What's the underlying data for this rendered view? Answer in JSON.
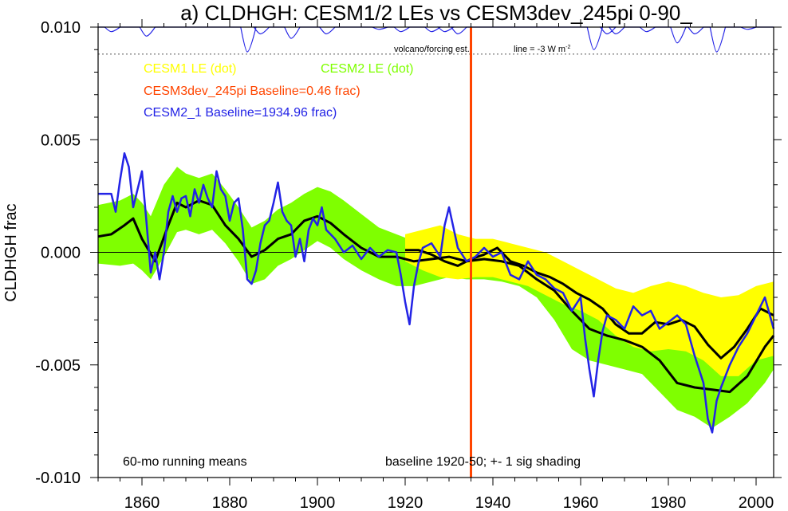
{
  "chart_data": {
    "type": "line",
    "title": "a) CLDHGH: CESM1/2 LEs vs CESM3dev_245pi 0-90_",
    "xlabel": "",
    "ylabel": "CLDHGH frac",
    "xlim": [
      1850,
      2004
    ],
    "ylim": [
      -0.01,
      0.01
    ],
    "x_ticks": [
      1860,
      1880,
      1900,
      1920,
      1940,
      1960,
      1980,
      2000
    ],
    "y_ticks": [
      -0.01,
      -0.005,
      0.0,
      0.005,
      0.01
    ],
    "y_tick_labels": [
      "-0.010",
      "-0.005",
      "0.000",
      "0.005",
      "0.010"
    ],
    "zero_line": true,
    "vertical_marker_year": 1935,
    "legend": [
      {
        "label": "CESM1 LE (dot)",
        "color": "#ffff00"
      },
      {
        "label": "CESM2 LE (dot)",
        "color": "#7fff00"
      },
      {
        "label": "CESM3dev_245pi Baseline=0.46 frac)",
        "color": "#ff4500"
      },
      {
        "label": "CESM2_1 Baseline=1934.96 frac)",
        "color": "#2323e6"
      }
    ],
    "annotations": {
      "volcano_label": "volcano/forcing est.",
      "line_label": "line = -3 W m",
      "line_label_sup": "-2",
      "bottom_left": "60-mo running means",
      "bottom_right": "baseline 1920-50; +- 1 sig shading"
    },
    "series": [
      {
        "name": "CESM2 LE spread",
        "kind": "band",
        "color": "#7fff00",
        "x": [
          1850,
          1855,
          1858,
          1860,
          1862,
          1865,
          1868,
          1870,
          1873,
          1876,
          1879,
          1882,
          1885,
          1888,
          1891,
          1894,
          1897,
          1900,
          1903,
          1906,
          1910,
          1914,
          1918,
          1922,
          1926,
          1930,
          1934,
          1938,
          1942,
          1946,
          1950,
          1954,
          1958,
          1962,
          1966,
          1970,
          1974,
          1978,
          1982,
          1986,
          1990,
          1994,
          1998,
          2002,
          2004
        ],
        "upper": [
          0.0021,
          0.0023,
          0.0026,
          0.0022,
          0.0016,
          0.003,
          0.0038,
          0.0035,
          0.0033,
          0.0035,
          0.0028,
          0.002,
          0.0011,
          0.0014,
          0.0019,
          0.0022,
          0.0026,
          0.0029,
          0.0027,
          0.0023,
          0.0017,
          0.0011,
          0.0008,
          0.0005,
          0.0006,
          0.0007,
          0.0004,
          0.0003,
          0.0002,
          0.0001,
          -0.0003,
          -0.0008,
          -0.0013,
          -0.0018,
          -0.0022,
          -0.0023,
          -0.0021,
          -0.0024,
          -0.0036,
          -0.004,
          -0.0045,
          -0.0042,
          -0.0036,
          -0.0029,
          -0.0027
        ],
        "lower": [
          -0.0005,
          -0.0006,
          -0.0005,
          -0.0008,
          -0.0012,
          -0.0002,
          0.0009,
          0.001,
          0.0008,
          0.001,
          0.0004,
          -0.0004,
          -0.0014,
          -0.0012,
          -0.0006,
          -0.0003,
          0.0001,
          0.0005,
          0.0002,
          -0.0003,
          -0.0008,
          -0.0012,
          -0.0015,
          -0.0015,
          -0.0013,
          -0.0011,
          -0.0012,
          -0.0012,
          -0.0013,
          -0.0015,
          -0.002,
          -0.003,
          -0.0043,
          -0.0048,
          -0.005,
          -0.0052,
          -0.0054,
          -0.0062,
          -0.007,
          -0.0073,
          -0.0078,
          -0.0073,
          -0.0067,
          -0.0058,
          -0.0052
        ]
      },
      {
        "name": "CESM1 LE spread",
        "kind": "band",
        "color": "#ffff00",
        "x": [
          1920,
          1924,
          1928,
          1932,
          1936,
          1940,
          1944,
          1948,
          1952,
          1956,
          1960,
          1964,
          1968,
          1972,
          1976,
          1980,
          1984,
          1988,
          1992,
          1996,
          2000,
          2004
        ],
        "upper": [
          0.0008,
          0.001,
          0.0012,
          0.0008,
          0.0006,
          0.0006,
          0.0004,
          0.0002,
          0.0,
          -0.0004,
          -0.0008,
          -0.0012,
          -0.0016,
          -0.0018,
          -0.0015,
          -0.0013,
          -0.0015,
          -0.0018,
          -0.002,
          -0.0019,
          -0.0015,
          -0.0013
        ],
        "lower": [
          -0.0004,
          -0.0008,
          -0.0011,
          -0.0012,
          -0.0011,
          -0.0011,
          -0.0013,
          -0.0015,
          -0.0019,
          -0.0023,
          -0.0026,
          -0.003,
          -0.0037,
          -0.0042,
          -0.0044,
          -0.0043,
          -0.0044,
          -0.0048,
          -0.0055,
          -0.0055,
          -0.0048,
          -0.0046
        ]
      },
      {
        "name": "CESM2 LE ensemble mean",
        "kind": "line",
        "color": "#000000",
        "x": [
          1850,
          1853,
          1856,
          1858,
          1860,
          1863,
          1866,
          1868,
          1870,
          1873,
          1876,
          1879,
          1882,
          1885,
          1888,
          1891,
          1894,
          1897,
          1900,
          1903,
          1906,
          1910,
          1914,
          1918,
          1922,
          1926,
          1930,
          1934,
          1938,
          1942,
          1946,
          1950,
          1954,
          1958,
          1962,
          1966,
          1970,
          1974,
          1978,
          1982,
          1986,
          1990,
          1994,
          1998,
          2002,
          2004
        ],
        "values": [
          0.0007,
          0.0008,
          0.0012,
          0.0015,
          0.0006,
          -0.0004,
          0.0012,
          0.0022,
          0.002,
          0.0023,
          0.0021,
          0.0012,
          0.0006,
          -0.0002,
          0.0001,
          0.0006,
          0.0008,
          0.0014,
          0.0016,
          0.0013,
          0.0008,
          0.0002,
          -0.0002,
          -0.0002,
          -0.0004,
          -0.0003,
          -0.0002,
          -0.0004,
          -0.0003,
          -0.0004,
          -0.0006,
          -0.0012,
          -0.0017,
          -0.0026,
          -0.0034,
          -0.0037,
          -0.0039,
          -0.0042,
          -0.0048,
          -0.0058,
          -0.006,
          -0.0061,
          -0.0062,
          -0.0055,
          -0.0042,
          -0.0037
        ]
      },
      {
        "name": "CESM1 LE ensemble mean",
        "kind": "line",
        "color": "#000000",
        "x": [
          1920,
          1923,
          1926,
          1929,
          1932,
          1935,
          1938,
          1941,
          1944,
          1947,
          1950,
          1953,
          1956,
          1959,
          1962,
          1965,
          1968,
          1971,
          1974,
          1977,
          1980,
          1983,
          1986,
          1989,
          1992,
          1995,
          1998,
          2001,
          2004
        ],
        "values": [
          0.0001,
          0.0001,
          -0.0001,
          -0.0004,
          -0.0006,
          -0.0003,
          -0.0001,
          0.0002,
          -0.0004,
          -0.0006,
          -0.0009,
          -0.0011,
          -0.0014,
          -0.0018,
          -0.0021,
          -0.0025,
          -0.0032,
          -0.0036,
          -0.0036,
          -0.0031,
          -0.0032,
          -0.003,
          -0.0033,
          -0.0041,
          -0.0047,
          -0.0042,
          -0.0034,
          -0.0025,
          -0.0028
        ]
      },
      {
        "name": "CESM2_1",
        "kind": "line",
        "color": "#2323e6",
        "x": [
          1850,
          1852,
          1853,
          1854,
          1855,
          1856,
          1857,
          1858,
          1859,
          1860,
          1861,
          1862,
          1863,
          1864,
          1865,
          1866,
          1867,
          1868,
          1869,
          1870,
          1871,
          1872,
          1873,
          1874,
          1875,
          1876,
          1877,
          1878,
          1879,
          1880,
          1881,
          1882,
          1883,
          1884,
          1885,
          1886,
          1887,
          1888,
          1889,
          1890,
          1891,
          1892,
          1893,
          1894,
          1895,
          1896,
          1897,
          1898,
          1899,
          1900,
          1901,
          1902,
          1904,
          1906,
          1908,
          1910,
          1912,
          1914,
          1916,
          1918,
          1919,
          1920,
          1921,
          1922,
          1923,
          1924,
          1926,
          1928,
          1929,
          1930,
          1932,
          1934,
          1936,
          1938,
          1940,
          1942,
          1944,
          1946,
          1948,
          1950,
          1952,
          1954,
          1956,
          1958,
          1960,
          1961,
          1962,
          1963,
          1964,
          1965,
          1966,
          1968,
          1970,
          1972,
          1974,
          1976,
          1978,
          1980,
          1982,
          1984,
          1986,
          1988,
          1989,
          1990,
          1991,
          1992,
          1994,
          1996,
          1998,
          2000,
          2002,
          2004
        ],
        "values": [
          0.0026,
          0.0026,
          0.0026,
          0.0018,
          0.0032,
          0.0044,
          0.0038,
          0.002,
          0.0028,
          0.0036,
          0.0014,
          -0.0009,
          0.0,
          -0.0012,
          0.0,
          0.0018,
          0.0025,
          0.0018,
          0.0024,
          0.0025,
          0.0016,
          0.0028,
          0.0022,
          0.003,
          0.0024,
          0.002,
          0.0036,
          0.0028,
          0.0025,
          0.0014,
          0.0022,
          0.0024,
          0.001,
          -0.0012,
          -0.0014,
          -0.0008,
          0.0004,
          0.0012,
          0.0014,
          0.0022,
          0.0031,
          0.0018,
          0.0014,
          0.0012,
          -0.0002,
          0.0006,
          -0.0004,
          0.001,
          0.0015,
          0.0012,
          0.002,
          0.001,
          0.0006,
          0.0,
          0.0003,
          -0.0003,
          0.0002,
          -0.0002,
          0.0001,
          0.0,
          -0.001,
          -0.0022,
          -0.0032,
          -0.0015,
          -0.0005,
          0.0002,
          0.0004,
          -0.0002,
          0.0012,
          0.002,
          0.0002,
          -0.0004,
          -0.0002,
          0.0002,
          -0.0002,
          0.0,
          -0.001,
          -0.0012,
          -0.0004,
          -0.001,
          -0.0012,
          -0.0016,
          -0.0018,
          -0.0026,
          -0.002,
          -0.0038,
          -0.0052,
          -0.0064,
          -0.0048,
          -0.0035,
          -0.0028,
          -0.003,
          -0.0034,
          -0.0024,
          -0.0028,
          -0.0026,
          -0.0034,
          -0.0031,
          -0.0028,
          -0.0032,
          -0.0046,
          -0.0058,
          -0.0074,
          -0.008,
          -0.0066,
          -0.006,
          -0.005,
          -0.0042,
          -0.0036,
          -0.0028,
          -0.002,
          -0.0034
        ]
      },
      {
        "name": "volcano/forcing est.",
        "kind": "volcano",
        "color": "#2323e6",
        "baseline": 0.01,
        "reference_line": 0.0088,
        "dips": [
          [
            1853,
            0.0098
          ],
          [
            1861,
            0.0096
          ],
          [
            1884,
            0.0089
          ],
          [
            1887,
            0.0097
          ],
          [
            1894,
            0.0095
          ],
          [
            1902,
            0.0097
          ],
          [
            1914,
            0.0099
          ],
          [
            1919,
            0.0098
          ],
          [
            1926,
            0.0098
          ],
          [
            1929,
            0.0098
          ],
          [
            1932,
            0.0097
          ],
          [
            1963,
            0.009
          ],
          [
            1966,
            0.0097
          ],
          [
            1968,
            0.0097
          ],
          [
            1975,
            0.0098
          ],
          [
            1982,
            0.0093
          ],
          [
            1986,
            0.0097
          ],
          [
            1991,
            0.0089
          ],
          [
            1998,
            0.0099
          ]
        ]
      }
    ]
  }
}
